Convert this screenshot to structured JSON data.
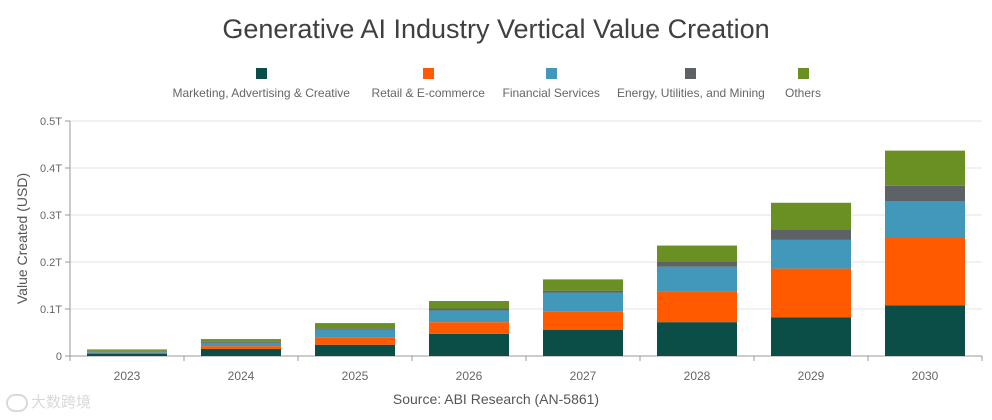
{
  "chart_data": {
    "type": "bar",
    "stacked": true,
    "title": "Generative AI Industry Vertical Value Creation",
    "ylabel": "Value Created (USD)",
    "xlabel": "",
    "categories": [
      "2023",
      "2024",
      "2025",
      "2026",
      "2027",
      "2028",
      "2029",
      "2030"
    ],
    "ylim": [
      0,
      0.5
    ],
    "yticks": [
      0,
      0.1,
      0.2,
      0.3,
      0.4,
      0.5
    ],
    "ytick_labels": [
      "0",
      "0.1T",
      "0.2T",
      "0.3T",
      "0.4T",
      "0.5T"
    ],
    "grid": true,
    "legend_position": "top",
    "series": [
      {
        "name": "Marketing, Advertising & Creative",
        "color": "#0b4d47",
        "values": [
          0.005,
          0.015,
          0.024,
          0.047,
          0.056,
          0.072,
          0.082,
          0.108
        ]
      },
      {
        "name": "Retail & E-commerce",
        "color": "#ff5a00",
        "values": [
          0.002,
          0.006,
          0.015,
          0.025,
          0.038,
          0.065,
          0.104,
          0.143
        ]
      },
      {
        "name": "Financial Services",
        "color": "#4198b8",
        "values": [
          0.003,
          0.007,
          0.017,
          0.025,
          0.041,
          0.053,
          0.061,
          0.078
        ]
      },
      {
        "name": "Energy, Utilities, and Mining",
        "color": "#5d6266",
        "values": [
          0.001,
          0.002,
          0.003,
          0.004,
          0.004,
          0.01,
          0.022,
          0.033
        ]
      },
      {
        "name": "Others",
        "color": "#6a8f23",
        "values": [
          0.003,
          0.006,
          0.011,
          0.016,
          0.024,
          0.035,
          0.057,
          0.075
        ]
      }
    ],
    "source": "Source: ABI Research (AN-5861)"
  },
  "watermark": "大数跨境"
}
